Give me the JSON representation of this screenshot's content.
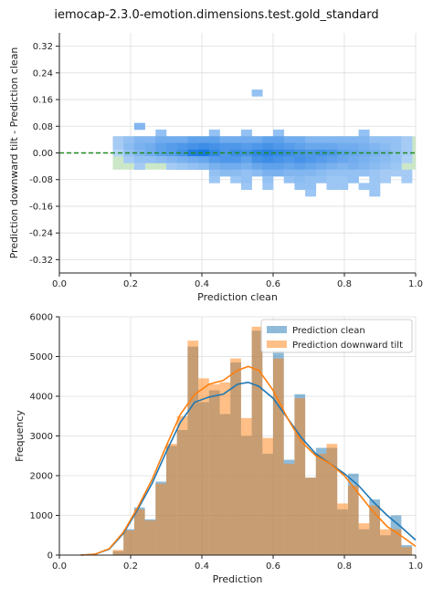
{
  "figure": {
    "title": "iemocap-2.3.0-emotion.dimensions.test.gold_standard"
  },
  "chart_data": [
    {
      "type": "heatmap",
      "xlabel": "Prediction clean",
      "ylabel": "Prediction downward tilt - Prediction clean",
      "xlim": [
        0.0,
        1.0
      ],
      "ylim": [
        -0.36,
        0.36
      ],
      "xticks": [
        "0.0",
        "0.2",
        "0.4",
        "0.6",
        "0.8",
        "1.0"
      ],
      "yticks": [
        "0.32",
        "0.24",
        "0.16",
        "0.08",
        "0.00",
        "-0.08",
        "-0.16",
        "-0.24",
        "-0.32"
      ],
      "tolerance_band": [
        -0.05,
        0.05
      ],
      "zero_line": 0.0,
      "grid": true,
      "colors": {
        "bins": "#2f8be8",
        "band": "#b9dfb4",
        "zero_line": "#1f8a1f",
        "grid": "#dddddd"
      },
      "bins_x": [
        0.15,
        0.18,
        0.21,
        0.24,
        0.27,
        0.3,
        0.33,
        0.36,
        0.39,
        0.42,
        0.45,
        0.48,
        0.51,
        0.54,
        0.57,
        0.6,
        0.63,
        0.66,
        0.69,
        0.72,
        0.75,
        0.78,
        0.81,
        0.84,
        0.87,
        0.9,
        0.93,
        0.96
      ],
      "bins_y": [
        0.18,
        0.08,
        0.06,
        0.04,
        0.02,
        0.0,
        -0.02,
        -0.04,
        -0.06,
        -0.08,
        -0.1,
        -0.12
      ],
      "density": [
        [
          0,
          0,
          0,
          0,
          0,
          0,
          0,
          0,
          0,
          0,
          0,
          0,
          0,
          0.3,
          0,
          0,
          0,
          0,
          0,
          0,
          0,
          0,
          0,
          0,
          0,
          0,
          0,
          0
        ],
        [
          0,
          0,
          0.4,
          0,
          0,
          0,
          0,
          0,
          0,
          0,
          0,
          0,
          0,
          0,
          0,
          0,
          0,
          0,
          0,
          0,
          0,
          0,
          0,
          0,
          0,
          0,
          0,
          0
        ],
        [
          0,
          0,
          0,
          0,
          0.3,
          0,
          0,
          0,
          0,
          0.3,
          0,
          0,
          0.3,
          0,
          0,
          0.3,
          0,
          0,
          0,
          0,
          0,
          0,
          0,
          0.3,
          0,
          0,
          0,
          0
        ],
        [
          0.2,
          0.3,
          0.4,
          0.4,
          0.5,
          0.5,
          0.5,
          0.6,
          0.6,
          0.6,
          0.5,
          0.5,
          0.5,
          0.5,
          0.6,
          0.6,
          0.5,
          0.5,
          0.4,
          0.4,
          0.4,
          0.4,
          0.4,
          0.4,
          0.3,
          0.3,
          0.3,
          0.2
        ],
        [
          0.2,
          0.35,
          0.45,
          0.5,
          0.6,
          0.65,
          0.7,
          0.75,
          0.8,
          0.75,
          0.7,
          0.7,
          0.65,
          0.7,
          0.75,
          0.7,
          0.65,
          0.6,
          0.55,
          0.55,
          0.55,
          0.5,
          0.5,
          0.45,
          0.4,
          0.35,
          0.3,
          0.2
        ],
        [
          0.1,
          0.3,
          0.4,
          0.5,
          0.6,
          0.65,
          0.75,
          0.95,
          1.0,
          0.85,
          0.7,
          0.8,
          0.75,
          0.85,
          0.9,
          0.85,
          0.8,
          0.75,
          0.7,
          0.75,
          0.7,
          0.6,
          0.55,
          0.5,
          0.45,
          0.4,
          0.3,
          0.2
        ],
        [
          0,
          0.2,
          0.3,
          0.3,
          0.35,
          0.4,
          0.45,
          0.5,
          0.55,
          0.65,
          0.7,
          0.7,
          0.6,
          0.75,
          0.8,
          0.75,
          0.7,
          0.75,
          0.7,
          0.65,
          0.6,
          0.55,
          0.5,
          0.45,
          0.4,
          0.35,
          0.3,
          0.15
        ],
        [
          0,
          0,
          0.2,
          0,
          0,
          0.2,
          0.25,
          0.3,
          0.35,
          0.45,
          0.5,
          0.5,
          0.45,
          0.55,
          0.6,
          0.6,
          0.55,
          0.6,
          0.55,
          0.5,
          0.45,
          0.4,
          0.45,
          0.4,
          0.35,
          0.3,
          0.25,
          0
        ],
        [
          0,
          0,
          0,
          0,
          0,
          0,
          0,
          0,
          0,
          0.3,
          0.35,
          0.35,
          0.3,
          0.35,
          0.45,
          0.45,
          0.4,
          0.4,
          0.4,
          0.35,
          0.3,
          0.3,
          0.3,
          0.3,
          0.25,
          0.2,
          0.2,
          0.2
        ],
        [
          0,
          0,
          0,
          0,
          0,
          0,
          0,
          0,
          0,
          0.25,
          0,
          0.25,
          0.3,
          0,
          0.3,
          0,
          0.3,
          0.35,
          0.3,
          0.3,
          0.25,
          0.25,
          0.3,
          0,
          0.25,
          0.2,
          0,
          0.2
        ],
        [
          0,
          0,
          0,
          0,
          0,
          0,
          0,
          0,
          0,
          0,
          0,
          0,
          0.25,
          0,
          0.25,
          0,
          0,
          0.3,
          0.3,
          0,
          0.25,
          0.25,
          0,
          0.25,
          0.25,
          0,
          0,
          0
        ],
        [
          0,
          0,
          0,
          0,
          0,
          0,
          0,
          0,
          0,
          0,
          0,
          0,
          0,
          0,
          0,
          0,
          0,
          0,
          0.25,
          0,
          0,
          0,
          0,
          0,
          0.25,
          0,
          0,
          0
        ]
      ]
    },
    {
      "type": "bar",
      "xlabel": "Prediction",
      "ylabel": "Frequency",
      "xlim": [
        0.0,
        1.0
      ],
      "ylim": [
        0,
        6000
      ],
      "xticks": [
        "0.0",
        "0.2",
        "0.4",
        "0.6",
        "0.8",
        "1.0"
      ],
      "yticks": [
        "0",
        "1000",
        "2000",
        "3000",
        "4000",
        "5000",
        "6000"
      ],
      "grid": true,
      "legend": "top-right",
      "bin_width": 0.03,
      "bin_edges_start": 0.15,
      "series": [
        {
          "name": "Prediction clean",
          "color": "#1f77b4",
          "values": [
            100,
            650,
            1200,
            900,
            1850,
            2750,
            3150,
            5250,
            3850,
            4150,
            3550,
            4850,
            3000,
            5650,
            2550,
            5150,
            2400,
            4050,
            1950,
            2700,
            2700,
            1150,
            2050,
            650,
            1400,
            500,
            1000,
            250
          ],
          "kde": [
            [
              0.06,
              0
            ],
            [
              0.1,
              20
            ],
            [
              0.14,
              150
            ],
            [
              0.18,
              550
            ],
            [
              0.22,
              1150
            ],
            [
              0.26,
              1800
            ],
            [
              0.3,
              2600
            ],
            [
              0.34,
              3350
            ],
            [
              0.38,
              3850
            ],
            [
              0.42,
              3980
            ],
            [
              0.46,
              4050
            ],
            [
              0.5,
              4300
            ],
            [
              0.53,
              4350
            ],
            [
              0.56,
              4250
            ],
            [
              0.6,
              3950
            ],
            [
              0.64,
              3450
            ],
            [
              0.68,
              2950
            ],
            [
              0.72,
              2550
            ],
            [
              0.76,
              2300
            ],
            [
              0.8,
              2050
            ],
            [
              0.84,
              1750
            ],
            [
              0.88,
              1350
            ],
            [
              0.92,
              1000
            ],
            [
              0.96,
              700
            ],
            [
              1.0,
              380
            ]
          ]
        },
        {
          "name": "Prediction downward tilt",
          "color": "#ff7f0e",
          "values": [
            130,
            620,
            1150,
            870,
            1800,
            2800,
            3500,
            5400,
            4450,
            4300,
            4350,
            4950,
            3450,
            5750,
            2950,
            4950,
            2300,
            3950,
            1950,
            2550,
            2800,
            1300,
            1750,
            800,
            1250,
            650,
            650,
            200
          ],
          "kde": [
            [
              0.06,
              0
            ],
            [
              0.1,
              20
            ],
            [
              0.14,
              160
            ],
            [
              0.18,
              580
            ],
            [
              0.22,
              1200
            ],
            [
              0.26,
              1900
            ],
            [
              0.3,
              2750
            ],
            [
              0.34,
              3550
            ],
            [
              0.38,
              4050
            ],
            [
              0.42,
              4300
            ],
            [
              0.46,
              4400
            ],
            [
              0.5,
              4650
            ],
            [
              0.53,
              4750
            ],
            [
              0.56,
              4650
            ],
            [
              0.6,
              4150
            ],
            [
              0.64,
              3450
            ],
            [
              0.68,
              2850
            ],
            [
              0.72,
              2500
            ],
            [
              0.76,
              2300
            ],
            [
              0.8,
              2000
            ],
            [
              0.84,
              1550
            ],
            [
              0.88,
              1100
            ],
            [
              0.92,
              720
            ],
            [
              0.96,
              480
            ],
            [
              1.0,
              220
            ]
          ]
        }
      ]
    }
  ]
}
